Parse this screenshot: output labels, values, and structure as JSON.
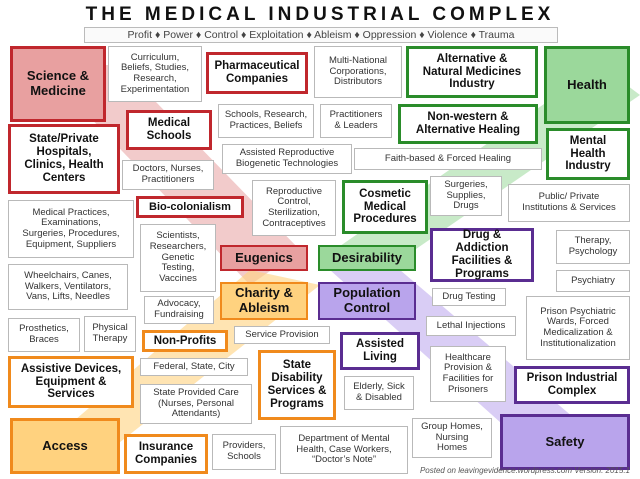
{
  "title": "THE MEDICAL INDUSTRIAL COMPLEX",
  "subtitle": "Profit ♦ Power ♦ Control ♦ Exploitation ♦ Ableism ♦ Oppression ♦ Violence ♦ Trauma",
  "colors": {
    "red": "#c0272d",
    "green": "#2a8c2a",
    "orange": "#f08a1c",
    "purple": "#5a2d91",
    "red_fill": "#e8a0a0",
    "green_fill": "#9bd89b",
    "orange_fill": "#ffd27f",
    "purple_fill": "#b9a4ec"
  },
  "hubs": {
    "science_medicine": "Science &\nMedicine",
    "health": "Health",
    "access": "Access",
    "safety": "Safety",
    "eugenics": "Eugenics",
    "desirability": "Desirability",
    "charity_ableism": "Charity &\nAbleism",
    "population_control": "Population\nControl"
  },
  "nodes": {
    "curriculum": "Curriculum,\nBeliefs, Studies,\nResearch,\nExperimentation",
    "pharma": "Pharmaceutical\nCompanies",
    "multinational": "Multi-National\nCorporations,\nDistributors",
    "alternative": "Alternative &\nNatural Medicines\nIndustry",
    "medical_schools": "Medical\nSchools",
    "schools_research": "Schools, Research,\nPractices, Beliefs",
    "practitioners_leaders": "Practitioners\n& Leaders",
    "non_western": "Non-western &\nAlternative Healing",
    "hospitals": "State/Private\nHospitals,\nClinics, Health\nCenters",
    "assisted_repro": "Assisted Reproductive\nBiogenetic Technologies",
    "faith_based": "Faith-based & Forced Healing",
    "mental_health": "Mental\nHealth\nIndustry",
    "doctors": "Doctors, Nurses,\nPractitioners",
    "biocolonialism": "Bio-colonialism",
    "reproductive": "Reproductive\nControl,\nSterilization,\nContraceptives",
    "cosmetic": "Cosmetic\nMedical\nProcedures",
    "surgeries_supplies": "Surgeries,\nSupplies,\nDrugs",
    "public_private": "Public/ Private\nInstitutions & Services",
    "medical_practices": "Medical Practices,\nExaminations,\nSurgeries, Procedures,\nEquipment, Suppliers",
    "scientists": "Scientists,\nResearchers,\nGenetic\nTesting,\nVaccines",
    "drug_addiction": "Drug & Addiction\nFacilities &\nPrograms",
    "therapy": "Therapy,\nPsychology",
    "wheelchairs": "Wheelchairs, Canes,\nWalkers, Ventilators,\nVans, Lifts, Needles",
    "psychiatry": "Psychiatry",
    "drug_testing": "Drug Testing",
    "advocacy": "Advocacy,\nFundraising",
    "prosthetics": "Prosthetics,\nBraces",
    "physical_therapy": "Physical\nTherapy",
    "lethal_injections": "Lethal Injections",
    "prison_wards": "Prison Psychiatric\nWards, Forced\nMedicalization &\nInstitutionalization",
    "service_provision": "Service Provision",
    "nonprofits": "Non-Profits",
    "assisted_living": "Assisted\nLiving",
    "assistive_devices": "Assistive Devices,\nEquipment &\nServices",
    "federal": "Federal, State, City",
    "state_disability": "State\nDisability\nServices &\nPrograms",
    "healthcare_prisoners": "Healthcare\nProvision &\nFacilities for\nPrisoners",
    "prison_complex": "Prison Industrial\nComplex",
    "state_care": "State Provided Care\n(Nurses, Personal\nAttendants)",
    "elderly": "Elderly, Sick\n& Disabled",
    "group_homes": "Group Homes,\nNursing\nHomes",
    "insurance": "Insurance\nCompanies",
    "providers_schools": "Providers,\nSchools",
    "dept_mental_health": "Department of Mental\nHealth, Case Workers,\n“Doctor’s Note”"
  },
  "footer": "Posted on leavingevidence.wordpress.com Version: 2015.1"
}
